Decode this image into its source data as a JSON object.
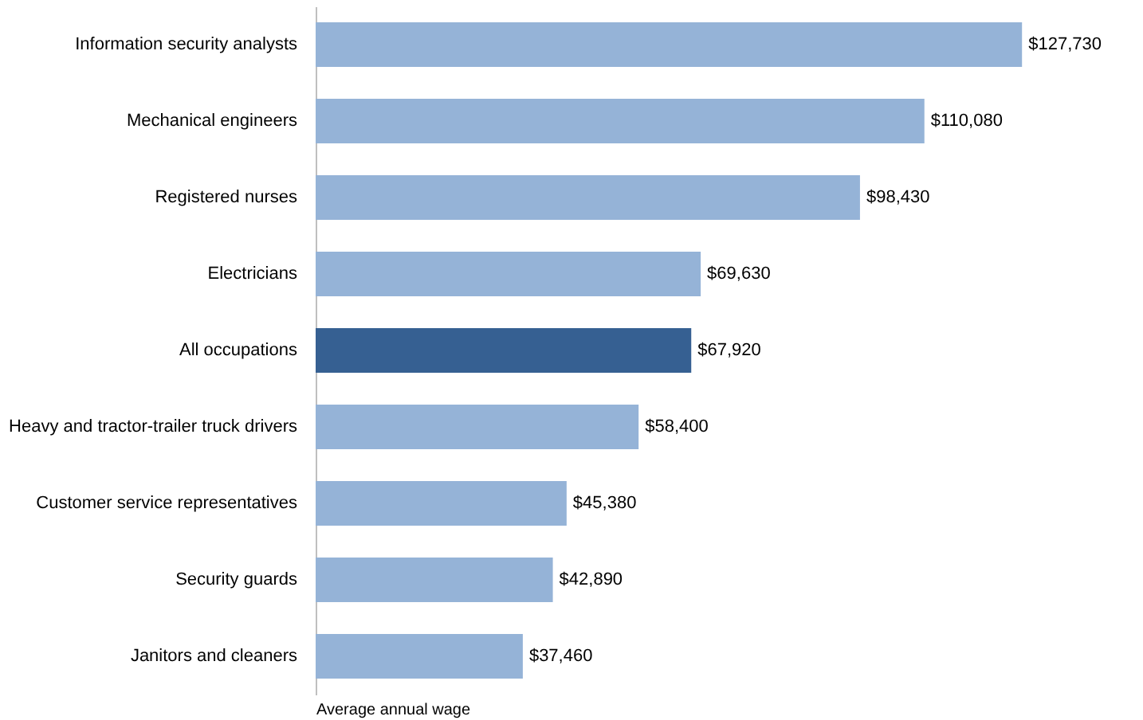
{
  "chart_data": {
    "type": "bar",
    "orientation": "horizontal",
    "xlabel": "Average annual wage",
    "categories": [
      "Information security analysts",
      "Mechanical engineers",
      "Registered nurses",
      "Electricians",
      "All occupations",
      "Heavy and tractor-trailer truck drivers",
      "Customer service representatives",
      "Security guards",
      "Janitors and cleaners"
    ],
    "values": [
      127730,
      110080,
      98430,
      69630,
      67920,
      58400,
      45380,
      42890,
      37460
    ],
    "colors": [
      "#95b3d7",
      "#95b3d7",
      "#95b3d7",
      "#95b3d7",
      "#366092",
      "#95b3d7",
      "#95b3d7",
      "#95b3d7",
      "#95b3d7"
    ],
    "value_labels": [
      "$127,730",
      "$110,080",
      "$98,430",
      "$69,630",
      "$67,920",
      "$58,400",
      "$45,380",
      "$42,890",
      "$37,460"
    ],
    "tick_labels": "y",
    "grid": false
  }
}
